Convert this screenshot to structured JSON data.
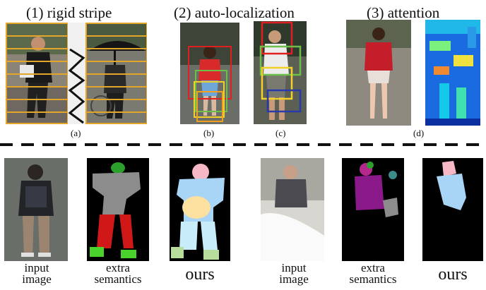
{
  "headers": {
    "rigid": "(1) rigid stripe",
    "auto": "(2) auto-localization",
    "attention": "(3) attention"
  },
  "subcaptions": {
    "a": "(a)",
    "b": "(b)",
    "c": "(c)",
    "d": "(d)"
  },
  "bottom_captions": {
    "input1": "input\nimage",
    "extra1": "extra\nsemantics",
    "ours1": "ours",
    "input2": "input\nimage",
    "extra2": "extra\nsemantics",
    "ours2": "ours"
  },
  "colors": {
    "stripe": "#e3a62a",
    "box_red": "#e02020",
    "box_green": "#6cc04a",
    "box_yellow": "#f2d02a",
    "box_orange": "#f0a020",
    "box_blue": "#2a3aa8",
    "seg_head": "#2ca02c",
    "seg_body": "#8c8c8c",
    "seg_legs": "#d01818",
    "seg_feet": "#49d22c",
    "ours_head": "#f6b8c4",
    "ours_upper": "#a8d4f6",
    "ours_bag": "#fbe0a0",
    "ours_legs": "#c9ecfa",
    "ours_feet": "#b8dc9c",
    "seg2_body": "#8a1a8a",
    "seg2_head": "#b4288c",
    "seg2_hand": "#3c8a8c"
  }
}
